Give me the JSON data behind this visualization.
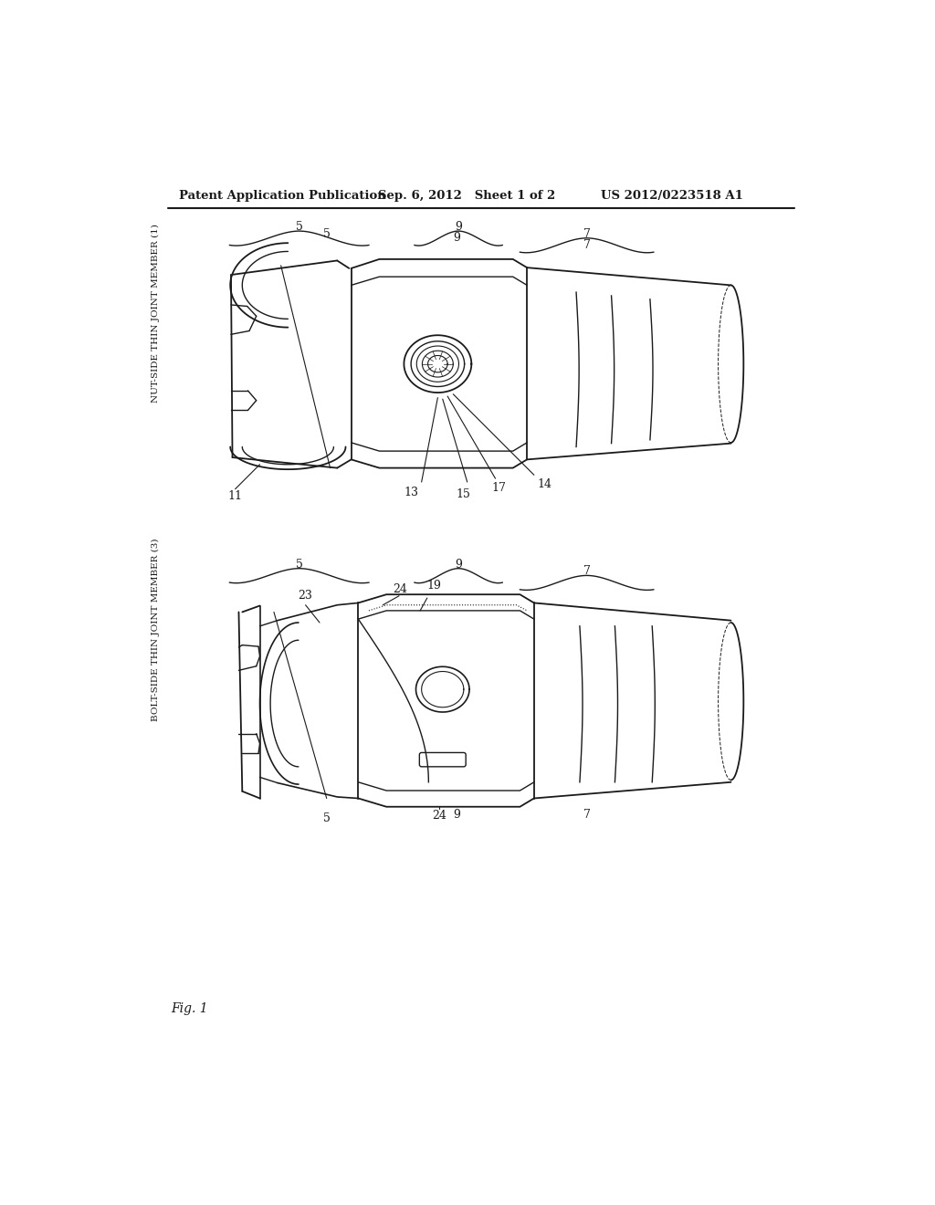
{
  "header_left": "Patent Application Publication",
  "header_mid": "Sep. 6, 2012   Sheet 1 of 2",
  "header_right": "US 2012/0223518 A1",
  "fig_label": "Fig. 1",
  "bg_color": "#ffffff",
  "line_color": "#1a1a1a",
  "top_label": "NUT-SIDE THIN JOINT MEMBER (1)",
  "bottom_label": "BOLT-SIDE THIN JOINT MEMBER (3)"
}
